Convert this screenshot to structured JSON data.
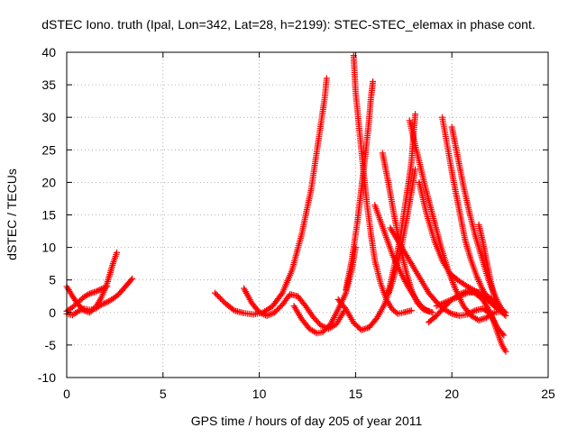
{
  "chart_data": {
    "type": "scatter",
    "title": "dSTEC Iono. truth (Ipal, Lon=342, Lat=28, h=2199): STEC-STEC_elemax in phase cont.",
    "xlabel": "GPS time / hours of day 205 of year 2011",
    "ylabel": "dSTEC  / TECUs",
    "xlim": [
      0,
      25
    ],
    "ylim": [
      -10,
      40
    ],
    "xticks": [
      0,
      5,
      10,
      15,
      20,
      25
    ],
    "yticks": [
      -10,
      -5,
      0,
      5,
      10,
      15,
      20,
      25,
      30,
      35,
      40
    ],
    "xtick_labels": [
      "0",
      "5",
      "10",
      "15",
      "20",
      "25"
    ],
    "ytick_labels": [
      "-10",
      "-5",
      "0",
      "5",
      "10",
      "15",
      "20",
      "25",
      "30",
      "35",
      "40"
    ],
    "grid": true,
    "marker": "+",
    "series_color": "#ff0000",
    "series": [
      {
        "x": [
          0.0,
          0.3,
          0.6,
          0.9,
          1.2,
          1.5,
          1.8,
          2.1,
          2.4,
          2.6
        ],
        "y": [
          4.0,
          2.5,
          1.2,
          0.3,
          0.0,
          0.8,
          2.3,
          4.5,
          7.5,
          9.2
        ]
      },
      {
        "x": [
          0.0,
          0.3,
          0.6,
          0.9,
          1.2,
          1.5,
          1.8,
          2.1,
          2.4,
          2.7,
          3.0,
          3.4
        ],
        "y": [
          -0.2,
          -0.4,
          0.2,
          0.6,
          0.4,
          0.6,
          1.2,
          1.6,
          2.1,
          2.8,
          3.8,
          5.2
        ]
      },
      {
        "x": [
          0.0,
          0.3,
          0.6,
          0.9,
          1.2,
          1.5,
          1.8,
          2.1
        ],
        "y": [
          0.2,
          0.8,
          1.6,
          2.4,
          2.9,
          3.2,
          3.6,
          4.0
        ]
      },
      {
        "x": [
          7.7,
          8.2,
          8.7,
          9.2,
          9.7,
          10.2,
          10.7,
          11.2,
          11.7,
          12.2,
          12.7,
          13.0,
          13.4,
          13.5
        ],
        "y": [
          3.0,
          1.5,
          0.3,
          -0.1,
          -0.3,
          0.0,
          1.0,
          3.0,
          6.5,
          12.0,
          19.0,
          25.0,
          33.0,
          36.0
        ]
      },
      {
        "x": [
          9.2,
          9.6,
          10.0,
          10.4,
          10.8,
          11.2,
          11.6,
          12.0,
          12.4,
          12.8,
          13.2,
          13.6,
          14.0,
          14.4
        ],
        "y": [
          3.7,
          1.5,
          0.0,
          -0.5,
          0.0,
          1.2,
          2.8,
          2.5,
          1.0,
          -0.7,
          -2.0,
          -2.5,
          -1.8,
          0.2
        ]
      },
      {
        "x": [
          11.8,
          12.2,
          12.6,
          13.0,
          13.3,
          13.7,
          14.1,
          14.5,
          14.8,
          15.0
        ],
        "y": [
          1.0,
          -1.0,
          -2.5,
          -3.2,
          -3.0,
          -1.8,
          0.5,
          3.0,
          6.5,
          10.0
        ]
      },
      {
        "x": [
          14.1,
          14.5,
          14.9,
          15.3,
          15.7,
          16.1,
          16.5,
          16.9,
          17.3,
          17.7,
          18.1
        ],
        "y": [
          2.0,
          0.5,
          -1.6,
          -2.7,
          -2.3,
          -0.9,
          1.2,
          4.5,
          9.0,
          15.0,
          22.0
        ]
      },
      {
        "x": [
          14.9,
          15.0,
          15.2,
          15.4,
          15.6,
          15.8,
          16.0,
          16.3,
          16.6,
          16.9,
          17.2,
          17.5,
          17.9
        ],
        "y": [
          39.5,
          34.0,
          28.0,
          22.0,
          16.5,
          12.0,
          8.0,
          4.5,
          2.0,
          0.5,
          -0.2,
          0.0,
          0.3
        ]
      },
      {
        "x": [
          14.5,
          14.8,
          15.1,
          15.3,
          15.5,
          15.7,
          15.8,
          15.9
        ],
        "y": [
          3.5,
          8.0,
          14.0,
          19.0,
          24.0,
          29.5,
          33.0,
          35.5
        ]
      },
      {
        "x": [
          16.4,
          16.7,
          17.0,
          17.3,
          17.6,
          17.9,
          18.2,
          18.5,
          18.8
        ],
        "y": [
          24.5,
          20.0,
          15.0,
          10.5,
          6.5,
          3.5,
          1.5,
          0.5,
          0.2
        ]
      },
      {
        "x": [
          16.0,
          16.3,
          16.6,
          16.9,
          17.2,
          17.5,
          17.8,
          18.1,
          18.4,
          18.7,
          19.0
        ],
        "y": [
          16.5,
          14.0,
          11.5,
          9.0,
          7.0,
          5.2,
          3.6,
          2.2,
          1.0,
          0.3,
          0.0
        ]
      },
      {
        "x": [
          18.1,
          18.0,
          17.9,
          17.7,
          17.5,
          17.3,
          17.0,
          16.7
        ],
        "y": [
          30.5,
          27.0,
          23.0,
          19.0,
          15.0,
          11.0,
          7.0,
          3.0
        ]
      },
      {
        "x": [
          17.8,
          18.2,
          18.6,
          19.0,
          19.4,
          19.8,
          20.2,
          20.6,
          21.0,
          21.4,
          21.8,
          22.2,
          22.6
        ],
        "y": [
          29.5,
          24.5,
          19.5,
          15.0,
          10.5,
          6.5,
          3.5,
          1.0,
          -0.5,
          -1.2,
          -0.8,
          0.0,
          0.2
        ]
      },
      {
        "x": [
          16.8,
          17.2,
          17.6,
          18.0,
          18.4,
          18.8,
          19.2,
          19.6,
          20.0,
          20.4,
          20.8,
          21.2,
          21.6,
          22.0,
          22.4,
          22.7
        ],
        "y": [
          13.0,
          11.0,
          9.0,
          7.0,
          5.0,
          3.0,
          1.6,
          0.5,
          -0.2,
          -0.5,
          -0.3,
          0.3,
          0.6,
          -0.2,
          -2.5,
          -3.5
        ]
      },
      {
        "x": [
          19.5,
          19.8,
          20.1,
          20.4,
          20.7,
          21.0,
          21.3,
          21.6,
          21.9,
          22.2,
          22.5,
          22.8
        ],
        "y": [
          30.0,
          25.0,
          20.0,
          15.5,
          11.0,
          8.0,
          5.5,
          3.5,
          2.0,
          1.0,
          0.5,
          0.0
        ]
      },
      {
        "x": [
          20.0,
          20.3,
          20.6,
          20.9,
          21.2,
          21.5,
          21.8,
          22.1,
          22.4,
          22.7
        ],
        "y": [
          28.5,
          24.0,
          19.5,
          15.5,
          12.0,
          9.0,
          6.0,
          3.5,
          1.5,
          0.0
        ]
      },
      {
        "x": [
          18.3,
          18.7,
          19.1,
          19.5,
          19.9,
          20.3,
          20.7,
          21.1,
          21.5,
          21.9,
          22.3,
          22.7
        ],
        "y": [
          20.0,
          15.0,
          11.0,
          8.0,
          6.0,
          5.0,
          4.2,
          3.5,
          2.8,
          1.8,
          0.8,
          0.0
        ]
      },
      {
        "x": [
          18.8,
          19.2,
          19.6,
          20.0,
          20.4,
          20.8,
          21.2,
          21.6,
          22.0,
          22.3,
          22.6,
          22.8
        ],
        "y": [
          -1.5,
          -0.5,
          0.8,
          2.0,
          2.8,
          3.3,
          3.0,
          2.0,
          0.0,
          -2.5,
          -5.0,
          -6.0
        ]
      },
      {
        "x": [
          21.4,
          21.6,
          21.8,
          22.0,
          22.2,
          22.4,
          22.6,
          22.8
        ],
        "y": [
          13.5,
          11.0,
          8.0,
          5.0,
          2.5,
          0.8,
          0.0,
          -0.5
        ]
      },
      {
        "x": [
          19.2,
          19.6,
          20.0,
          20.4,
          20.8,
          21.2,
          21.6,
          22.0,
          22.4
        ],
        "y": [
          1.0,
          1.5,
          2.0,
          2.5,
          3.0,
          3.2,
          3.0,
          2.2,
          0.8
        ]
      }
    ]
  }
}
